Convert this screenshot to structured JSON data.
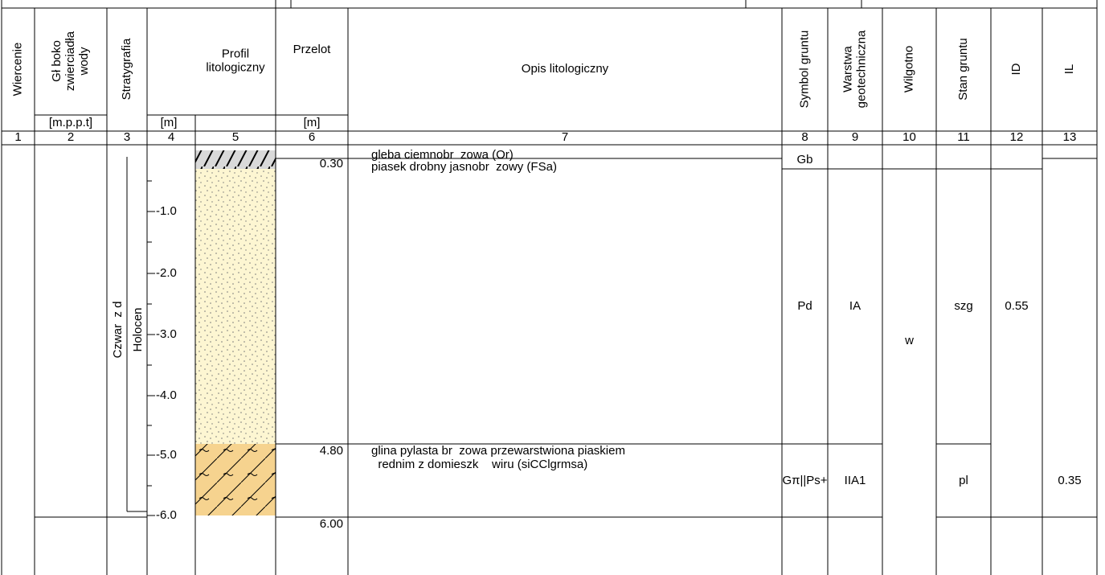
{
  "header": {
    "columns": [
      [
        "Wiercenie"
      ],
      [
        "Gł boko",
        "zwierciadła",
        "wody"
      ],
      [
        "Stratygrafia"
      ],
      [
        "Profil",
        "litologiczny"
      ],
      [
        "Przelot"
      ],
      [
        "Opis litologiczny"
      ],
      [
        "Symbol gruntu"
      ],
      [
        "Warstwa",
        "geotechniczna"
      ],
      [
        "Wilgotno"
      ],
      [
        "Stan gruntu"
      ],
      [
        "ID"
      ],
      [
        "IL"
      ]
    ],
    "units": {
      "groundwater": "[m.p.p.t]",
      "depth": "[m]",
      "interval": "[m]"
    }
  },
  "column_numbers": [
    "1",
    "2",
    "3",
    "4",
    "5",
    "6",
    "7",
    "8",
    "9",
    "10",
    "11",
    "12",
    "13"
  ],
  "scale": [
    "-1.0",
    "-2.0",
    "-3.0",
    "-4.0",
    "-5.0",
    "-6.0"
  ],
  "stratigraphy": {
    "system": "Czwar  z d",
    "series": "Holocen"
  },
  "layers": [
    {
      "description": [
        "gleba ciemnobr  zowa (Or)"
      ],
      "symbol": "Gb"
    },
    {
      "top": "0.30",
      "description": [
        "piasek drobny jasnobr  zowy (FSa)"
      ],
      "symbol": "Pd",
      "layer": "IA",
      "state": "szg",
      "id": "0.55"
    },
    {
      "top": "4.80",
      "description": [
        "glina pylasta br  zowa przewarstwiona piaskiem",
        "  rednim z domieszk    wiru (siCClgrmsa)"
      ],
      "symbol": "Gπ||Ps+",
      "layer": "IIA1",
      "state": "pl",
      "il": "0.35"
    }
  ],
  "bottom": "6.00",
  "moisture": "w"
}
